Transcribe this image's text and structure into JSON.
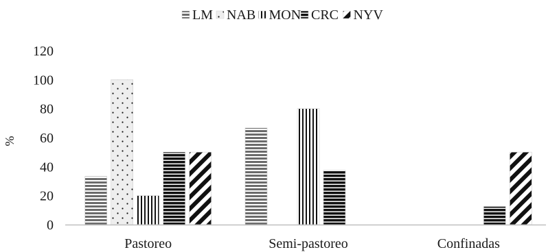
{
  "chart_data": {
    "type": "bar",
    "title": "",
    "xlabel": "",
    "ylabel": "%",
    "ylim": [
      0,
      120
    ],
    "yticks": [
      0,
      20,
      40,
      60,
      80,
      100,
      120
    ],
    "grid": false,
    "legend_position": "top",
    "categories": [
      "Pastoreo",
      "Semi-pastoreo",
      "Confinadas"
    ],
    "series": [
      {
        "name": "LM",
        "pattern": "horizontal-stripes",
        "values": [
          33.3,
          66.7,
          0
        ]
      },
      {
        "name": "NAB",
        "pattern": "dots",
        "values": [
          100,
          0,
          0
        ]
      },
      {
        "name": "MON",
        "pattern": "vertical-stripes",
        "values": [
          20,
          80,
          0
        ]
      },
      {
        "name": "CRC",
        "pattern": "dark-horizontal-stripes",
        "values": [
          50,
          37.5,
          12.5
        ]
      },
      {
        "name": "NYV",
        "pattern": "diagonal-stripes",
        "values": [
          50,
          0,
          50
        ]
      }
    ]
  },
  "colors": {
    "axis": "#bfbfbf",
    "text": "#1a1a1a"
  }
}
